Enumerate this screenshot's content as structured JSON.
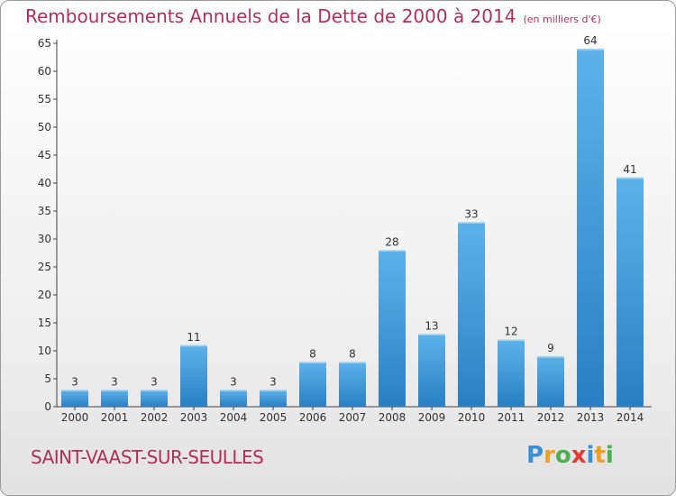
{
  "chart_data": {
    "type": "bar",
    "title": "Remboursements Annuels de la Dette de 2000 à 2014",
    "unit": "(en milliers d'€)",
    "categories": [
      "2000",
      "2001",
      "2002",
      "2003",
      "2004",
      "2005",
      "2006",
      "2007",
      "2008",
      "2009",
      "2010",
      "2011",
      "2012",
      "2013",
      "2014"
    ],
    "values": [
      3,
      3,
      3,
      11,
      3,
      3,
      8,
      8,
      28,
      13,
      33,
      12,
      9,
      64,
      41
    ],
    "yticks": [
      "0",
      "5",
      "10",
      "15",
      "20",
      "25",
      "30",
      "35",
      "40",
      "45",
      "50",
      "55",
      "60",
      "65"
    ],
    "ylim": [
      0,
      65
    ],
    "grid": false,
    "bar_color": "#3d96d8"
  },
  "location": "SAINT-VAAST-SUR-SEULLES",
  "logo": {
    "letters": [
      "P",
      "r",
      "o",
      "x",
      "i",
      "t",
      "i"
    ],
    "colors": [
      "#3a8fd6",
      "#f0a020",
      "#4caf50",
      "#e53935",
      "#3a8fd6",
      "#f0a020",
      "#4caf50"
    ]
  }
}
